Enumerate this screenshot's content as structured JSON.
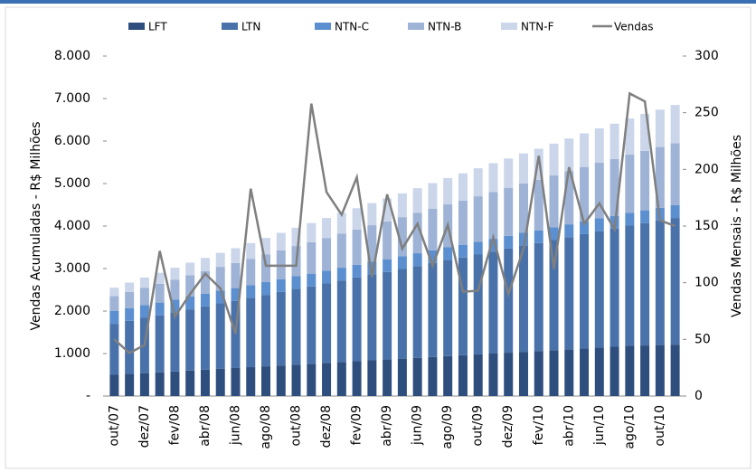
{
  "chart_data": {
    "type": "bar",
    "stacked": true,
    "y_label": "Vendas Acumuladas - R$ Milhões",
    "y2_label": "Vendas Mensais - R$ Milhões",
    "categories": [
      "out/07",
      null,
      "dez/07",
      null,
      "fev/08",
      null,
      "abr/08",
      null,
      "jun/08",
      null,
      "ago/08",
      null,
      "out/08",
      null,
      "dez/08",
      null,
      "fev/09",
      null,
      "abr/09",
      null,
      "jun/09",
      null,
      "ago/09",
      null,
      "out/09",
      null,
      "dez/09",
      null,
      "fev/10",
      null,
      "abr/10",
      null,
      "jun/10",
      null,
      "ago/10",
      null,
      "out/10",
      null
    ],
    "series": [
      {
        "name": "LFT",
        "color": "#2e4e7e",
        "values": [
          500,
          520,
          540,
          560,
          580,
          600,
          620,
          640,
          660,
          680,
          700,
          720,
          740,
          760,
          780,
          800,
          820,
          840,
          860,
          880,
          900,
          920,
          940,
          960,
          980,
          1000,
          1020,
          1040,
          1060,
          1080,
          1100,
          1120,
          1140,
          1160,
          1180,
          1190,
          1200,
          1210
        ]
      },
      {
        "name": "LTN",
        "color": "#4a72aa",
        "values": [
          1200,
          1250,
          1300,
          1340,
          1390,
          1440,
          1490,
          1540,
          1580,
          1630,
          1680,
          1730,
          1780,
          1820,
          1870,
          1920,
          1970,
          2020,
          2060,
          2110,
          2160,
          2210,
          2260,
          2300,
          2350,
          2400,
          2450,
          2500,
          2540,
          2590,
          2640,
          2690,
          2740,
          2780,
          2830,
          2880,
          2930,
          2980
        ]
      },
      {
        "name": "NTN-C",
        "color": "#5b8fd0",
        "values": [
          300,
          300,
          300,
          300,
          300,
          300,
          300,
          300,
          300,
          300,
          300,
          300,
          300,
          300,
          300,
          300,
          300,
          300,
          300,
          300,
          300,
          300,
          300,
          300,
          300,
          300,
          300,
          300,
          300,
          300,
          300,
          300,
          300,
          300,
          300,
          300,
          300,
          300
        ]
      },
      {
        "name": "NTN-B",
        "color": "#9eb3d6",
        "values": [
          350,
          380,
          410,
          440,
          470,
          500,
          530,
          560,
          590,
          620,
          650,
          680,
          710,
          740,
          770,
          800,
          830,
          860,
          890,
          920,
          950,
          980,
          1010,
          1040,
          1070,
          1100,
          1130,
          1160,
          1190,
          1220,
          1250,
          1280,
          1310,
          1340,
          1370,
          1400,
          1430,
          1460
        ]
      },
      {
        "name": "NTN-F",
        "color": "#cbd6eb",
        "values": [
          200,
          220,
          240,
          260,
          280,
          300,
          310,
          330,
          350,
          370,
          390,
          410,
          430,
          450,
          470,
          490,
          500,
          520,
          540,
          560,
          580,
          600,
          620,
          640,
          660,
          680,
          690,
          710,
          730,
          750,
          770,
          790,
          810,
          830,
          850,
          870,
          880,
          900
        ]
      },
      {
        "name": "Vendas",
        "color": "#7f7f7f",
        "type": "line",
        "axis": "y2",
        "values": [
          50,
          38,
          45,
          128,
          70,
          90,
          108,
          95,
          55,
          183,
          115,
          115,
          115,
          258,
          180,
          160,
          193,
          105,
          178,
          130,
          152,
          115,
          151,
          92,
          93,
          140,
          90,
          130,
          212,
          112,
          202,
          152,
          170,
          147,
          267,
          260,
          155,
          150
        ]
      }
    ],
    "ylim": [
      0,
      8000
    ],
    "yticks": [
      {
        "value": 0,
        "label": "-"
      },
      {
        "value": 1000,
        "label": "1.000"
      },
      {
        "value": 2000,
        "label": "2.000"
      },
      {
        "value": 3000,
        "label": "3.000"
      },
      {
        "value": 4000,
        "label": "4.000"
      },
      {
        "value": 5000,
        "label": "5.000"
      },
      {
        "value": 6000,
        "label": "6.000"
      },
      {
        "value": 7000,
        "label": "7.000"
      },
      {
        "value": 8000,
        "label": "8.000"
      }
    ],
    "y2lim": [
      0,
      300
    ],
    "y2ticks": [
      0,
      50,
      100,
      150,
      200,
      250,
      300
    ],
    "legend": "top"
  }
}
